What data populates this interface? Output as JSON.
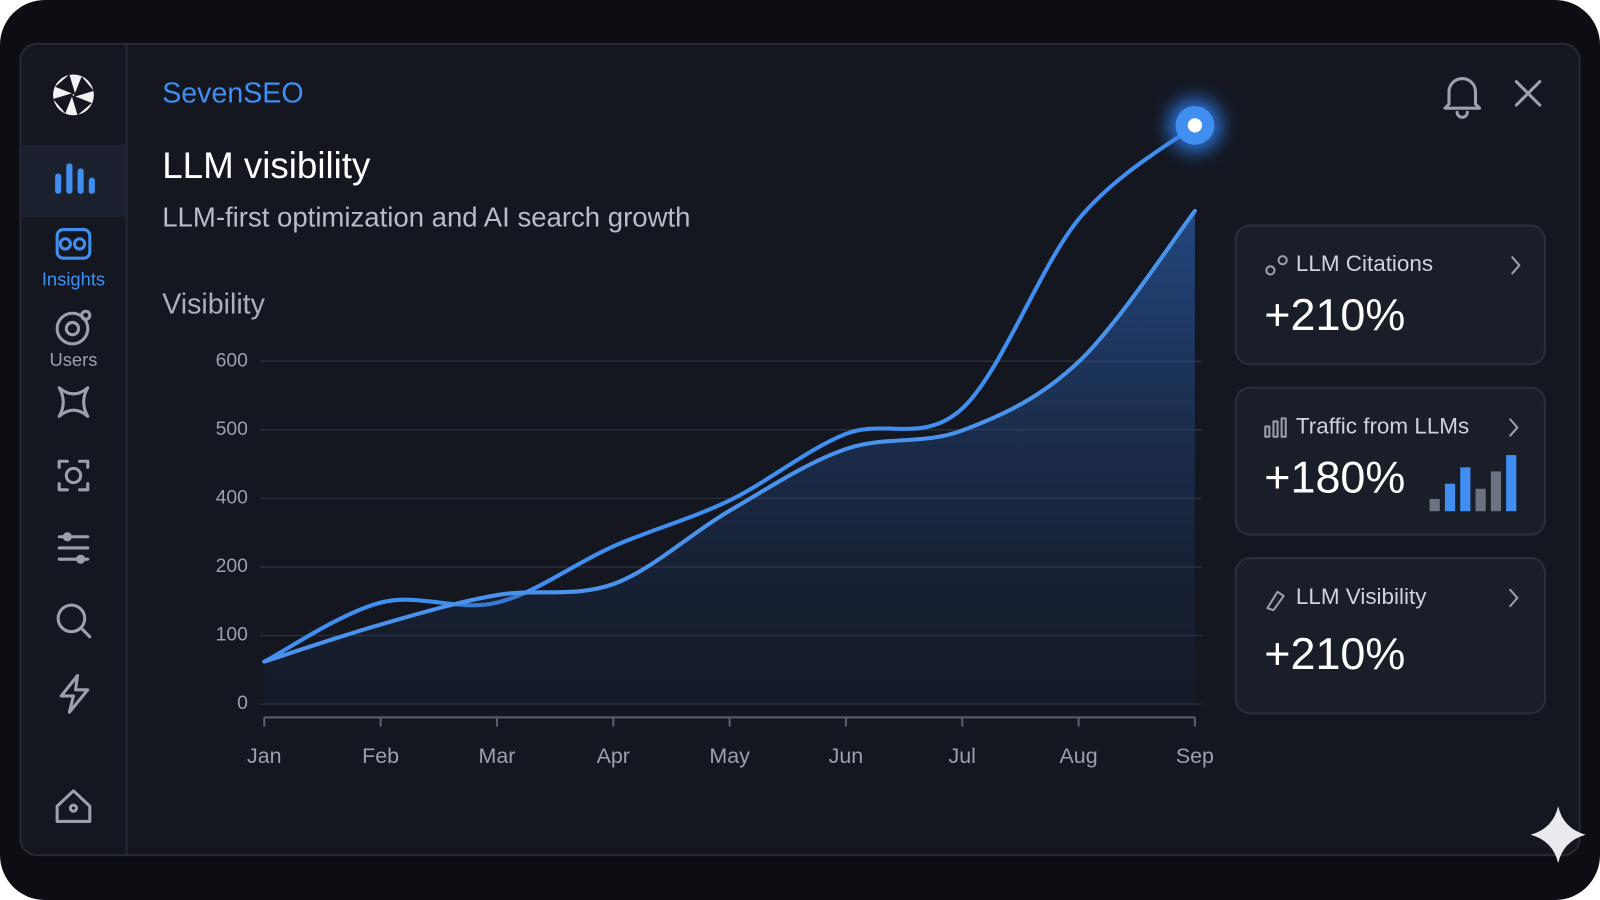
{
  "brand": "SevenSEO",
  "sidebar": {
    "labels": [
      "Insights",
      "Users"
    ]
  },
  "chart_data": {
    "type": "line",
    "title": "LLM visibility",
    "subtitle": "LLM-first optimization and AI search growth",
    "y_label": "Visibility",
    "categories": [
      "Jan",
      "Feb",
      "Mar",
      "Apr",
      "May",
      "Jun",
      "Jul",
      "Aug",
      "Sep"
    ],
    "series": [
      {
        "color": "#3f8ef0",
        "values": [
          62,
          148,
          148,
          260,
          394,
          494,
          531,
          807,
          944
        ]
      },
      {
        "color": "#4a93ec",
        "values": [
          62,
          116,
          159,
          175,
          364,
          472,
          499,
          599,
          819
        ],
        "fill": true
      }
    ],
    "ylim": [
      0,
      960
    ],
    "yticks": [
      0,
      100,
      200,
      400,
      500,
      600
    ],
    "grid": true
  },
  "cards": [
    {
      "title": "LLM Citations",
      "value": "+210%"
    },
    {
      "title": "Traffic from LLMs",
      "value": "+180%"
    },
    {
      "title": "LLM Visibility",
      "value": "+210%"
    }
  ]
}
